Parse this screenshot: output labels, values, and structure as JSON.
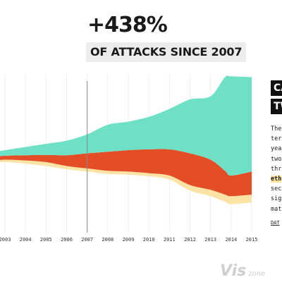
{
  "headline": "+438%",
  "subheadline": "OF ATTACKS SINCE 2007",
  "sidebar": {
    "heading_1": "CA",
    "heading_2": "TW",
    "lines": [
      "The",
      "ter",
      "yea",
      "two",
      "thr",
      "eth",
      "sec",
      "sig",
      "mat"
    ],
    "highlight_index": 5,
    "link": "DAT"
  },
  "watermark": {
    "part1": "Vis",
    "part2": "zone"
  },
  "chart_data": {
    "type": "area",
    "title": "",
    "xlabel": "",
    "ylabel": "",
    "categories": [
      "2003",
      "2004",
      "2005",
      "2006",
      "2007",
      "2008",
      "2009",
      "2010",
      "2011",
      "2012",
      "2013",
      "2014",
      "2015"
    ],
    "xlim": [
      2002,
      2015
    ],
    "ylim": [
      0,
      100
    ],
    "marker_year": 2007,
    "grid": true,
    "series": [
      {
        "color": "#6ee0c6",
        "x": [
          2002,
          2003,
          2004,
          2005,
          2006,
          2007,
          2008,
          2009,
          2010,
          2011,
          2012,
          2013,
          2013.7,
          2014,
          2015
        ],
        "upper": [
          50.0,
          52.0,
          54.0,
          56.0,
          58.0,
          62.0,
          68.0,
          70.0,
          73.0,
          78.0,
          84.0,
          86.0,
          98.0,
          98.5,
          98.0
        ],
        "lower": [
          47.5,
          48.5,
          48.8,
          49.0,
          48.8,
          50.0,
          51.0,
          52.0,
          52.5,
          52.5,
          50.0,
          46.0,
          39.0,
          36.0,
          38.5
        ]
      },
      {
        "color": "#e34e26",
        "x": [
          2002,
          2003,
          2004,
          2005,
          2006,
          2007,
          2008,
          2009,
          2010,
          2011,
          2012,
          2013,
          2013.7,
          2014,
          2015
        ],
        "upper": [
          47.5,
          48.5,
          48.8,
          49.0,
          48.8,
          50.0,
          51.0,
          52.0,
          52.5,
          52.5,
          50.0,
          46.0,
          39.0,
          36.0,
          38.5
        ],
        "lower": [
          45.0,
          46.0,
          45.5,
          44.5,
          42.0,
          40.5,
          39.0,
          38.5,
          37.5,
          36.0,
          30.0,
          27.0,
          24.0,
          23.0,
          24.0
        ]
      },
      {
        "color": "#fbe3a6",
        "x": [
          2002,
          2003,
          2004,
          2005,
          2006,
          2007,
          2008,
          2009,
          2010,
          2011,
          2012,
          2013,
          2013.7,
          2014,
          2015
        ],
        "upper": [
          45.0,
          46.0,
          45.5,
          44.5,
          42.0,
          40.5,
          39.0,
          38.5,
          37.5,
          36.0,
          30.0,
          27.0,
          24.0,
          23.0,
          24.0
        ],
        "lower": [
          44.0,
          44.5,
          43.5,
          42.0,
          40.0,
          38.5,
          37.0,
          36.5,
          35.5,
          33.5,
          26.5,
          23.0,
          19.5,
          18.0,
          19.0
        ]
      }
    ]
  }
}
